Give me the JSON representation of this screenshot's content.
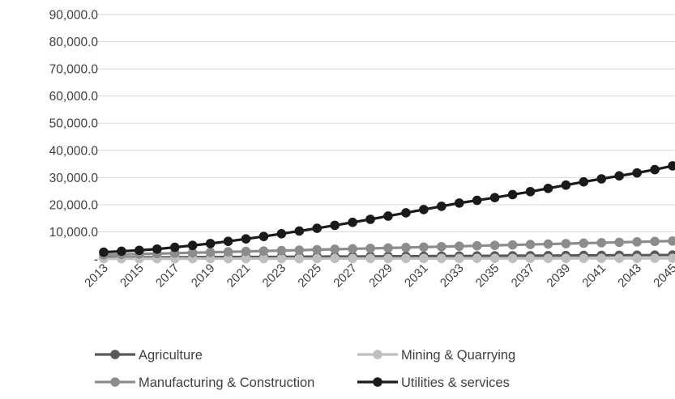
{
  "chart_data": {
    "type": "line",
    "title": "",
    "xlabel": "",
    "ylabel": "",
    "x": [
      2013,
      2014,
      2015,
      2016,
      2017,
      2018,
      2019,
      2020,
      2021,
      2022,
      2023,
      2024,
      2025,
      2026,
      2027,
      2028,
      2029,
      2030,
      2031,
      2032,
      2033,
      2034,
      2035,
      2036,
      2037,
      2038,
      2039,
      2040,
      2041,
      2042,
      2043,
      2044,
      2045
    ],
    "x_tick_labels": [
      "2013",
      "2015",
      "2017",
      "2019",
      "2021",
      "2023",
      "2025",
      "2027",
      "2029",
      "2031",
      "2033",
      "2035",
      "2037",
      "2039",
      "2041",
      "2043",
      "2045"
    ],
    "ylim": [
      0,
      90000
    ],
    "y_ticks": [
      0,
      10000,
      20000,
      30000,
      40000,
      50000,
      60000,
      70000,
      80000,
      90000
    ],
    "y_tick_labels": [
      "-",
      "10,000.0",
      "20,000.0",
      "30,000.0",
      "40,000.0",
      "50,000.0",
      "60,000.0",
      "70,000.0",
      "80,000.0",
      "90,000.0"
    ],
    "grid": true,
    "legend_position": "bottom",
    "series": [
      {
        "name": "Agriculture",
        "color": "#595959",
        "values": [
          500,
          530,
          560,
          590,
          620,
          650,
          680,
          710,
          740,
          770,
          800,
          830,
          860,
          890,
          920,
          950,
          980,
          1010,
          1040,
          1070,
          1100,
          1130,
          1160,
          1190,
          1220,
          1250,
          1280,
          1310,
          1340,
          1370,
          1400,
          1430,
          1460
        ]
      },
      {
        "name": "Mining & Quarrying",
        "color": "#bfbfbf",
        "values": [
          100,
          105,
          110,
          115,
          120,
          125,
          130,
          135,
          140,
          145,
          150,
          155,
          160,
          165,
          170,
          175,
          180,
          185,
          190,
          195,
          200,
          205,
          210,
          215,
          220,
          225,
          230,
          235,
          240,
          245,
          250,
          255,
          260
        ]
      },
      {
        "name": "Manufacturing & Construction",
        "color": "#8c8c8c",
        "values": [
          1500,
          1660,
          1820,
          1980,
          2140,
          2300,
          2460,
          2620,
          2780,
          2940,
          3100,
          3260,
          3420,
          3580,
          3740,
          3900,
          4060,
          4220,
          4380,
          4540,
          4700,
          4860,
          5020,
          5180,
          5340,
          5500,
          5660,
          5820,
          5980,
          6140,
          6300,
          6460,
          6620
        ]
      },
      {
        "name": "Utilities & services",
        "color": "#1a1a1a",
        "values": [
          2500,
          2850,
          3200,
          3650,
          4300,
          5000,
          5700,
          6500,
          7400,
          8300,
          9300,
          10300,
          11300,
          12400,
          13500,
          14600,
          15800,
          17000,
          18200,
          19400,
          20600,
          21600,
          22600,
          23700,
          24800,
          26000,
          27200,
          28400,
          29500,
          30600,
          31700,
          32900,
          34300
        ]
      }
    ]
  }
}
